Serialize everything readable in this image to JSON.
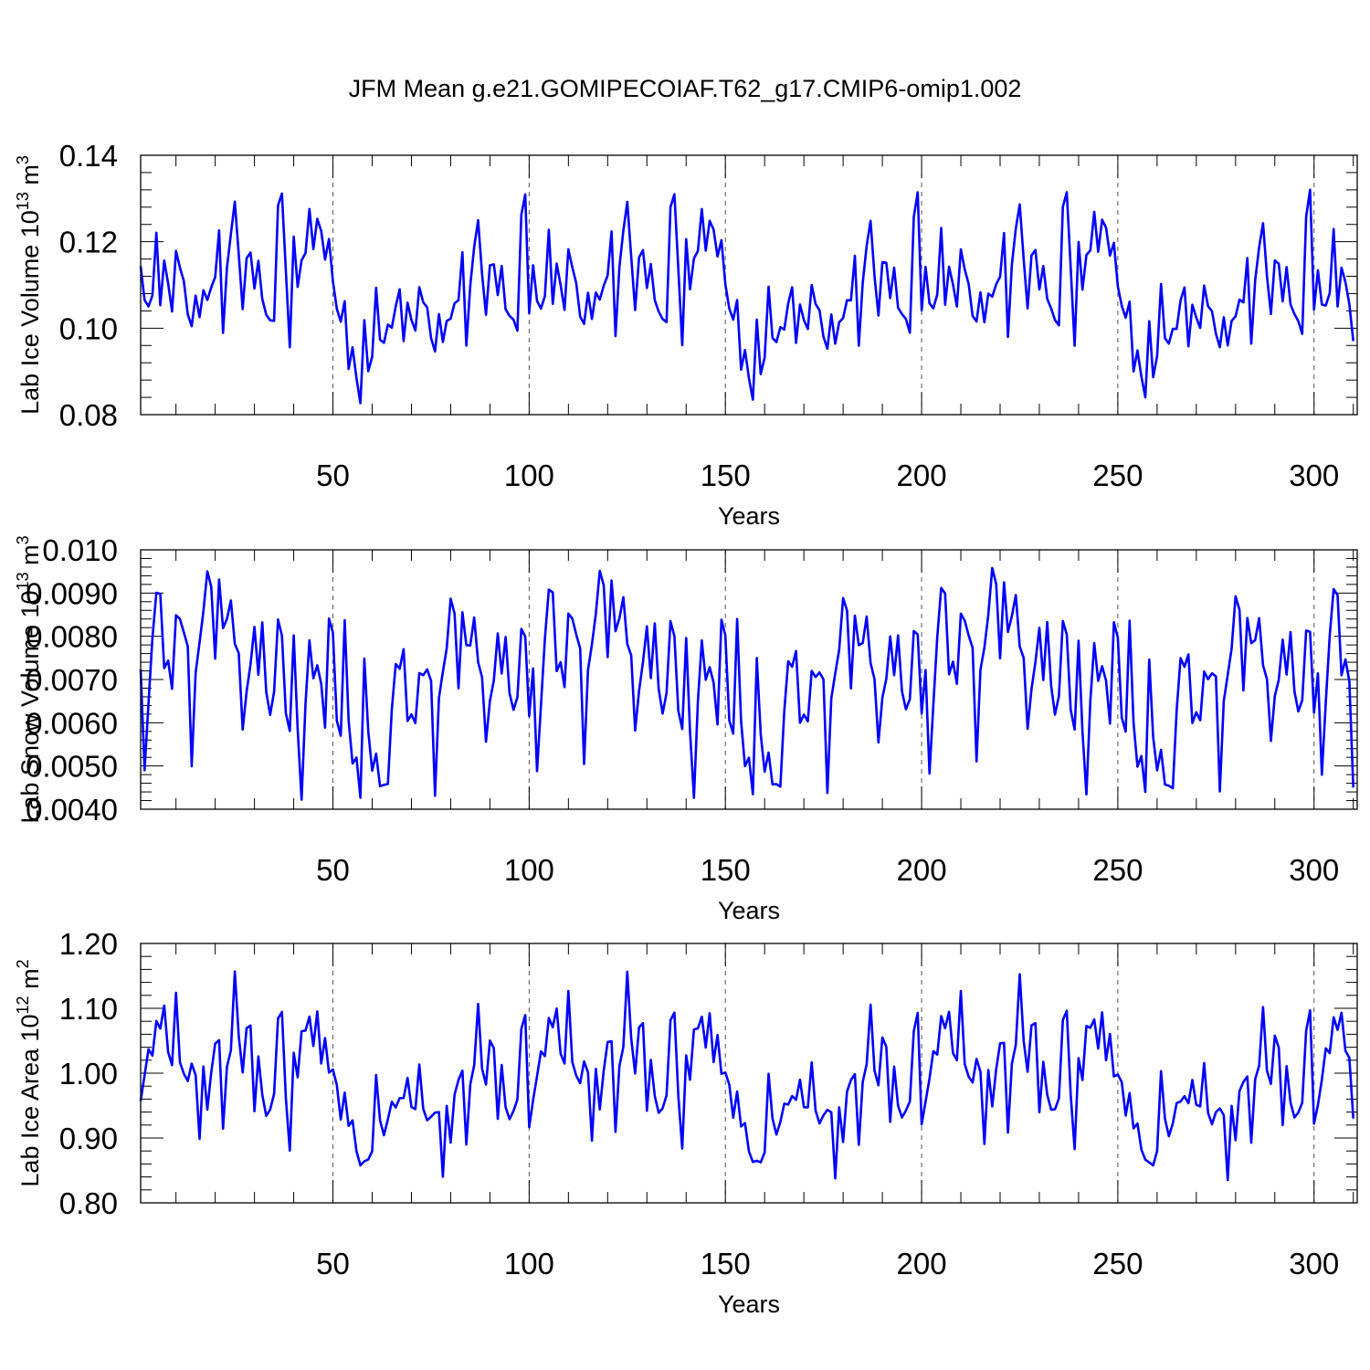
{
  "figure_title": "JFM Mean g.e21.GOMIPECOIAF.T62_g17.CMIP6-omip1.002",
  "line_color": "#0000ff",
  "chart_data": [
    {
      "type": "line",
      "name": "lab-ice-volume",
      "ylabel_text": "Lab Ice Volume 10",
      "ylabel_exp": "13",
      "ylabel_unit": " m",
      "ylabel_unit_exp": "3",
      "xlabel": "Years",
      "xlim": [
        1,
        311
      ],
      "ylim": [
        0.08,
        0.14
      ],
      "yticks": [
        0.08,
        0.1,
        0.12,
        0.14
      ],
      "ytick_labels": [
        "0.08",
        "0.10",
        "0.12",
        "0.14"
      ],
      "xticks": [
        50,
        100,
        150,
        200,
        250,
        300
      ],
      "xtick_labels": [
        "50",
        "100",
        "150",
        "200",
        "250",
        "300"
      ],
      "grid_x": [
        50,
        100,
        150,
        200,
        250,
        300
      ],
      "template": [
        0.114,
        0.1055,
        0.1055,
        0.108,
        0.122,
        0.1055,
        0.115,
        0.11,
        0.105,
        0.118,
        0.113,
        0.111,
        0.1035,
        0.1005,
        0.108,
        0.102,
        0.108,
        0.1075,
        0.11,
        0.111,
        0.1225,
        0.099,
        0.114,
        0.1225,
        0.129,
        0.116,
        0.105,
        0.117,
        0.117,
        0.109,
        0.1155,
        0.1065,
        0.104,
        0.102,
        0.1005,
        0.1285,
        0.132,
        0.113,
        0.0955,
        0.121,
        0.109,
        0.1165,
        0.118,
        0.1265,
        0.118,
        0.126,
        0.1225,
        0.116,
        0.1205,
        0.11,
        0.105,
        0.1025,
        0.1055,
        0.09,
        0.096,
        0.0885,
        0.083,
        0.102,
        0.089,
        0.0935,
        0.1105,
        0.097,
        0.096,
        0.101,
        0.1,
        0.1055,
        0.1095,
        0.096,
        0.1055,
        0.103,
        0.0995,
        0.109,
        0.106,
        0.1045,
        0.098,
        0.0955,
        0.1025,
        0.096,
        0.1025,
        0.1025,
        0.1055,
        0.1065,
        0.117,
        0.096,
        0.111,
        0.1185,
        0.124,
        0.113,
        0.1035,
        0.1145,
        0.115,
        0.107,
        0.114,
        0.1055,
        0.103,
        0.101,
        0.0995,
        0.1265,
        0.131,
        0.104
      ],
      "noise": 0.0012,
      "last": 0.097
    },
    {
      "type": "line",
      "name": "lab-snow-volume",
      "ylabel_text": "Lab Snow Volume 10",
      "ylabel_exp": "13",
      "ylabel_unit": " m",
      "ylabel_unit_exp": "3",
      "xlabel": "Years",
      "xlim": [
        1,
        311
      ],
      "ylim": [
        0.004,
        0.01
      ],
      "yticks": [
        0.004,
        0.005,
        0.006,
        0.007,
        0.008,
        0.009,
        0.01
      ],
      "ytick_labels": [
        "0.0040",
        "0.0050",
        "0.0060",
        "0.0070",
        "0.0080",
        "0.0090",
        "0.010"
      ],
      "xticks": [
        50,
        100,
        150,
        200,
        250,
        300
      ],
      "xtick_labels": [
        "50",
        "100",
        "150",
        "200",
        "250",
        "300"
      ],
      "grid_x": [
        50,
        100,
        150,
        200,
        250,
        300
      ],
      "template": [
        0.0072,
        0.0048,
        0.0065,
        0.008,
        0.009,
        0.009,
        0.0072,
        0.0074,
        0.0069,
        0.0085,
        0.0083,
        0.0081,
        0.0078,
        0.005,
        0.0072,
        0.0078,
        0.0085,
        0.0096,
        0.0092,
        0.0074,
        0.0093,
        0.0082,
        0.0084,
        0.0089,
        0.0078,
        0.0075,
        0.0059,
        0.0068,
        0.0073,
        0.0082,
        0.0071,
        0.0083,
        0.0068,
        0.0062,
        0.0066,
        0.0084,
        0.0081,
        0.0062,
        0.0058,
        0.008,
        0.0058,
        0.0043,
        0.0065,
        0.0078,
        0.007,
        0.0074,
        0.0069,
        0.0059,
        0.0084,
        0.008,
        0.0061,
        0.0058,
        0.0083,
        0.006,
        0.0051,
        0.0052,
        0.0043,
        0.0075,
        0.0057,
        0.0049,
        0.0054,
        0.0045,
        0.0045,
        0.0046,
        0.0063,
        0.0074,
        0.0073,
        0.0076,
        0.006,
        0.0063,
        0.006,
        0.0071,
        0.0071,
        0.0072,
        0.007,
        0.0044,
        0.0065,
        0.0071,
        0.0078,
        0.0089,
        0.0085,
        0.0068,
        0.0085,
        0.0078,
        0.0079,
        0.0084,
        0.0073,
        0.0071,
        0.0056,
        0.0065,
        0.007,
        0.008,
        0.0071,
        0.0081,
        0.0067,
        0.0062,
        0.0066,
        0.0082,
        0.008,
        0.0062
      ],
      "noise": 0.00012,
      "last": 0.0045
    },
    {
      "type": "line",
      "name": "lab-ice-area",
      "ylabel_text": "Lab Ice Area 10",
      "ylabel_exp": "12",
      "ylabel_unit": " m",
      "ylabel_unit_exp": "2",
      "xlabel": "Years",
      "xlim": [
        1,
        311
      ],
      "ylim": [
        0.8,
        1.2
      ],
      "yticks": [
        0.8,
        0.9,
        1.0,
        1.1,
        1.2
      ],
      "ytick_labels": [
        "0.80",
        "0.90",
        "1.00",
        "1.10",
        "1.20"
      ],
      "xticks": [
        50,
        100,
        150,
        200,
        250,
        300
      ],
      "xtick_labels": [
        "50",
        "100",
        "150",
        "200",
        "250",
        "300"
      ],
      "grid_x": [
        50,
        100,
        150,
        200,
        250,
        300
      ],
      "template": [
        0.955,
        0.99,
        1.04,
        1.03,
        1.08,
        1.07,
        1.1,
        1.03,
        1.02,
        1.125,
        1.01,
        1.0,
        0.99,
        1.015,
        1.0,
        0.895,
        1.005,
        0.95,
        1.005,
        1.04,
        1.05,
        0.915,
        1.01,
        1.04,
        1.155,
        1.05,
        1.005,
        1.075,
        1.07,
        0.94,
        1.025,
        0.965,
        0.94,
        0.945,
        0.96,
        1.085,
        1.1,
        0.96,
        0.88,
        1.03,
        0.99,
        1.07,
        1.07,
        1.08,
        1.04,
        1.1,
        1.015,
        1.055,
        1.0,
        1.0,
        0.985,
        0.935,
        0.965,
        0.915,
        0.93,
        0.88,
        0.86,
        0.865,
        0.86,
        0.88,
        1.005,
        0.925,
        0.9,
        0.93,
        0.955,
        0.95,
        0.965,
        0.955,
        0.99,
        0.955,
        0.945,
        1.01,
        0.945,
        0.925,
        0.935,
        0.945,
        0.935,
        0.835,
        0.955,
        0.895,
        0.965,
        0.99,
        1.0,
        0.89,
        0.99,
        1.01,
        1.1,
        1.01,
        0.985,
        1.05,
        1.04,
        0.925,
        1.01,
        0.955,
        0.93,
        0.935,
        0.96,
        1.07,
        1.09,
        0.92
      ],
      "noise": 0.008,
      "last": 0.93
    }
  ]
}
